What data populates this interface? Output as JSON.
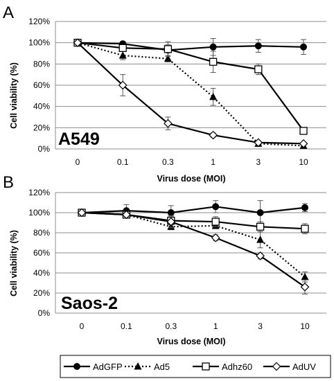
{
  "panels": [
    {
      "letter": "A",
      "cell_line": "A549"
    },
    {
      "letter": "B",
      "cell_line": "Saos-2"
    }
  ],
  "legend": [
    {
      "label": "AdGFP"
    },
    {
      "label": "Ad5"
    },
    {
      "label": "Adhz60"
    },
    {
      "label": "AdUV"
    }
  ],
  "chart_data": [
    {
      "type": "line",
      "panel": "A",
      "annotation": "A549",
      "xlabel": "Virus dose (MOI)",
      "ylabel": "Cell viability (%)",
      "categories": [
        "0",
        "0.1",
        "0.3",
        "1",
        "3",
        "10"
      ],
      "yticks": [
        "0%",
        "20%",
        "40%",
        "60%",
        "80%",
        "100%",
        "120%"
      ],
      "ylim": [
        0,
        120
      ],
      "grid": true,
      "series": [
        {
          "name": "AdGFP",
          "marker": "circle",
          "dash": "solid",
          "values": [
            100,
            99,
            93,
            96,
            97,
            96
          ],
          "errors": [
            0,
            2,
            5,
            8,
            6,
            7
          ]
        },
        {
          "name": "Ad5",
          "marker": "triangle",
          "dash": "dotted",
          "values": [
            100,
            88,
            85,
            49,
            5,
            3
          ],
          "errors": [
            0,
            4,
            3,
            8,
            1,
            1
          ]
        },
        {
          "name": "Adhz60",
          "marker": "square",
          "dash": "solid",
          "values": [
            100,
            95,
            94,
            82,
            75,
            17
          ],
          "errors": [
            0,
            3,
            7,
            10,
            5,
            2
          ]
        },
        {
          "name": "AdUV",
          "marker": "diamond",
          "dash": "solid",
          "values": [
            100,
            60,
            24,
            13,
            6,
            5
          ],
          "errors": [
            0,
            10,
            6,
            2,
            1,
            1
          ]
        }
      ]
    },
    {
      "type": "line",
      "panel": "B",
      "annotation": "Saos-2",
      "xlabel": "Virus dose (MOI)",
      "ylabel": "Cell viability (%)",
      "categories": [
        "0",
        "0.1",
        "0.3",
        "1",
        "3",
        "10"
      ],
      "yticks": [
        "0%",
        "20%",
        "40%",
        "60%",
        "80%",
        "100%",
        "120%"
      ],
      "ylim": [
        0,
        120
      ],
      "grid": true,
      "series": [
        {
          "name": "AdGFP",
          "marker": "circle",
          "dash": "solid",
          "values": [
            100,
            102,
            100,
            106,
            100,
            105
          ],
          "errors": [
            0,
            6,
            7,
            6,
            12,
            4
          ]
        },
        {
          "name": "Ad5",
          "marker": "triangle",
          "dash": "dotted",
          "values": [
            100,
            98,
            86,
            87,
            73,
            36
          ],
          "errors": [
            0,
            3,
            3,
            3,
            8,
            5
          ]
        },
        {
          "name": "Adhz60",
          "marker": "square",
          "dash": "solid",
          "values": [
            100,
            98,
            92,
            91,
            86,
            84
          ],
          "errors": [
            0,
            3,
            4,
            5,
            5,
            5
          ]
        },
        {
          "name": "AdUV",
          "marker": "diamond",
          "dash": "solid",
          "values": [
            100,
            98,
            91,
            75,
            57,
            26
          ],
          "errors": [
            0,
            3,
            6,
            3,
            3,
            7
          ]
        }
      ]
    }
  ]
}
